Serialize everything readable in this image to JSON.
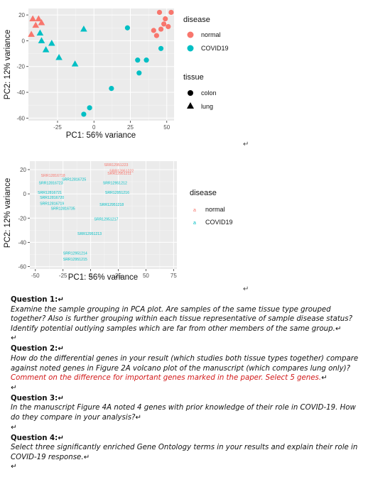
{
  "plot1": {
    "chart_data": {
      "type": "scatter",
      "xlabel": "PC1: 56% variance",
      "ylabel": "PC2: 12% variance",
      "xticks": [
        "-25",
        "0",
        "25",
        "50"
      ],
      "yticks": [
        "20",
        "0",
        "-20",
        "-40",
        "-60"
      ],
      "xlim": [
        -45,
        55
      ],
      "ylim": [
        -62,
        25
      ],
      "grid": true,
      "legend_placement": "right",
      "legend": {
        "disease_title": "disease",
        "disease_items": [
          {
            "label": "normal",
            "color": "#F8766D"
          },
          {
            "label": "COVID19",
            "color": "#00BFC4"
          }
        ],
        "tissue_title": "tissue",
        "tissue_items": [
          {
            "label": "colon",
            "shape": "circle"
          },
          {
            "label": "lung",
            "shape": "triangle"
          }
        ]
      },
      "points": [
        {
          "x": -42,
          "y": 17,
          "disease": "normal",
          "tissue": "lung"
        },
        {
          "x": -38,
          "y": 17,
          "disease": "normal",
          "tissue": "lung"
        },
        {
          "x": -40,
          "y": 12,
          "disease": "normal",
          "tissue": "lung"
        },
        {
          "x": -36,
          "y": 14,
          "disease": "normal",
          "tissue": "lung"
        },
        {
          "x": -43,
          "y": 5,
          "disease": "normal",
          "tissue": "lung"
        },
        {
          "x": -37,
          "y": 6,
          "disease": "COVID19",
          "tissue": "lung"
        },
        {
          "x": -36,
          "y": 0,
          "disease": "COVID19",
          "tissue": "lung"
        },
        {
          "x": -29,
          "y": -2,
          "disease": "COVID19",
          "tissue": "lung"
        },
        {
          "x": -33,
          "y": -7,
          "disease": "COVID19",
          "tissue": "lung"
        },
        {
          "x": -24,
          "y": -13,
          "disease": "COVID19",
          "tissue": "lung"
        },
        {
          "x": -13,
          "y": -18,
          "disease": "COVID19",
          "tissue": "lung"
        },
        {
          "x": -7,
          "y": 9,
          "disease": "COVID19",
          "tissue": "lung"
        },
        {
          "x": 23,
          "y": 10,
          "disease": "COVID19",
          "tissue": "colon"
        },
        {
          "x": 45,
          "y": 22,
          "disease": "normal",
          "tissue": "colon"
        },
        {
          "x": 53,
          "y": 22,
          "disease": "normal",
          "tissue": "colon"
        },
        {
          "x": 49,
          "y": 17,
          "disease": "normal",
          "tissue": "colon"
        },
        {
          "x": 41,
          "y": 8,
          "disease": "normal",
          "tissue": "colon"
        },
        {
          "x": 46,
          "y": 9,
          "disease": "normal",
          "tissue": "colon"
        },
        {
          "x": 51,
          "y": 11,
          "disease": "normal",
          "tissue": "colon"
        },
        {
          "x": 43,
          "y": 4,
          "disease": "normal",
          "tissue": "colon"
        },
        {
          "x": 48,
          "y": 13,
          "disease": "normal",
          "tissue": "colon"
        },
        {
          "x": 46,
          "y": -6,
          "disease": "COVID19",
          "tissue": "colon"
        },
        {
          "x": 36,
          "y": -15,
          "disease": "COVID19",
          "tissue": "colon"
        },
        {
          "x": 30,
          "y": -15,
          "disease": "COVID19",
          "tissue": "colon"
        },
        {
          "x": 31,
          "y": -25,
          "disease": "COVID19",
          "tissue": "colon"
        },
        {
          "x": 12,
          "y": -37,
          "disease": "COVID19",
          "tissue": "colon"
        },
        {
          "x": -3,
          "y": -52,
          "disease": "COVID19",
          "tissue": "colon"
        },
        {
          "x": -7,
          "y": -57,
          "disease": "COVID19",
          "tissue": "colon"
        }
      ]
    }
  },
  "plot2": {
    "chart_data": {
      "type": "scatter",
      "xlabel": "PC1: 56% variance",
      "ylabel": "PC2: 12% variance",
      "xticks": [
        "-50",
        "-25",
        "0",
        "25",
        "50",
        "75"
      ],
      "yticks": [
        "20",
        "0",
        "-20",
        "-40",
        "-60"
      ],
      "xlim": [
        -55,
        78
      ],
      "ylim": [
        -62,
        27
      ],
      "grid": true,
      "legend_placement": "right",
      "legend": {
        "title": "disease",
        "items": [
          {
            "label": "normal",
            "color": "#F8766D"
          },
          {
            "label": "COVID19",
            "color": "#00BFC4"
          }
        ]
      },
      "points": [
        {
          "x": 23,
          "y": 23,
          "label": "SRR12951223",
          "disease": "normal"
        },
        {
          "x": 28,
          "y": 18,
          "label": "SRR12951222",
          "disease": "normal"
        },
        {
          "x": 26,
          "y": 16,
          "label": "SRR12951211",
          "disease": "normal"
        },
        {
          "x": -34,
          "y": 14,
          "label": "SRR12816718",
          "disease": "normal"
        },
        {
          "x": -15,
          "y": 11,
          "label": "SRR12816725",
          "disease": "COVID19"
        },
        {
          "x": -36,
          "y": 8,
          "label": "SRR12816723",
          "disease": "COVID19"
        },
        {
          "x": 22,
          "y": 8,
          "label": "SRR12951212",
          "disease": "COVID19"
        },
        {
          "x": -37,
          "y": 0,
          "label": "SRR12816721",
          "disease": "COVID19"
        },
        {
          "x": 24,
          "y": 0,
          "label": "SRR12951216",
          "disease": "COVID19"
        },
        {
          "x": -35,
          "y": -4,
          "label": "SRR12816720",
          "disease": "COVID19"
        },
        {
          "x": -35,
          "y": -9,
          "label": "SRR12816719",
          "disease": "COVID19"
        },
        {
          "x": 19,
          "y": -10,
          "label": "SRR12951218",
          "disease": "COVID19"
        },
        {
          "x": -25,
          "y": -13,
          "label": "SRR12816735",
          "disease": "COVID19"
        },
        {
          "x": 14,
          "y": -22,
          "label": "SRR12951217",
          "disease": "COVID19"
        },
        {
          "x": -1,
          "y": -34,
          "label": "SRR12951213",
          "disease": "COVID19"
        },
        {
          "x": -14,
          "y": -50,
          "label": "SRR12951214",
          "disease": "COVID19"
        },
        {
          "x": -14,
          "y": -55,
          "label": "SRR12951215",
          "disease": "COVID19"
        }
      ]
    }
  },
  "marks": {
    "after_plot1": "↵",
    "after_plot2": "↵"
  },
  "questions": [
    {
      "title": "Question 1:",
      "body": "Examine the sample grouping in PCA plot. Are samples of the same tissue type grouped together? Also is further grouping within each tissue representative of sample disease status? Identify potential outlying samples which are far from other members of the same group.",
      "red": ""
    },
    {
      "title": "Question 2:",
      "body": "How do the differential genes in your result (which studies both tissue types together) compare  against noted genes in Figure 2A volcano plot of the manuscript (which compares lung only)? ",
      "red": "Comment on the difference for important genes marked in the paper. Select 5 genes."
    },
    {
      "title": "Question 3:",
      "body": "In the manuscript Figure 4A noted 4 genes with prior knowledge of their role in COVID-19. How do they compare in your analysis?",
      "red": ""
    },
    {
      "title": "Question 4:",
      "body": "Select three significantly enriched Gene Ontology terms in your results and explain their role in COVID-19 response.",
      "red": ""
    }
  ],
  "return_mark": "↵",
  "colors": {
    "normal": "#F8766D",
    "covid": "#00BFC4",
    "panel": "#EBEBEB",
    "red_text": "#d11a1a"
  }
}
